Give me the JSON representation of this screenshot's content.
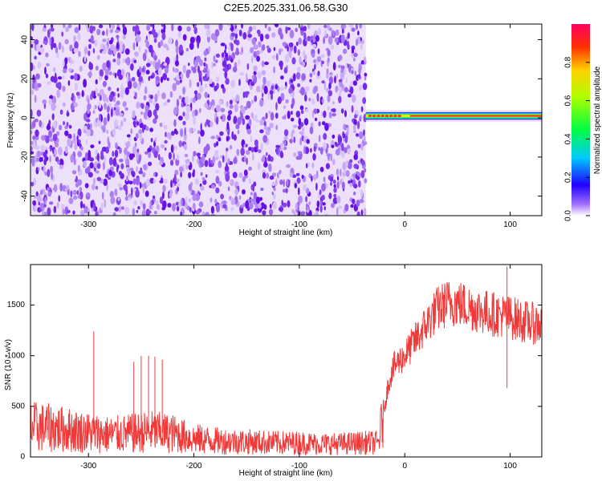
{
  "title": "C2E5.2025.331.06.58.G30",
  "colors": {
    "snr_line": "#f03a3a",
    "spectrum_low": "#7a2be8",
    "axis": "#000000"
  },
  "chart_data": [
    {
      "type": "heatmap",
      "xlabel": "Height of straight line (km)",
      "ylabel": "Frequency (Hz)",
      "xlim": [
        -355,
        130
      ],
      "ylim": [
        -50,
        48
      ],
      "x_ticks": [
        -300,
        -200,
        -100,
        0,
        100
      ],
      "y_ticks": [
        -40,
        -20,
        0,
        20,
        40
      ],
      "colorbar": {
        "label": "Normalized spectral amplitude",
        "range": [
          0.0,
          1.0
        ],
        "ticks": [
          "0.0",
          "0.2",
          "0.4",
          "0.6",
          "0.8"
        ],
        "colormap": "rainbow"
      },
      "regions": [
        {
          "x_range": [
            -355,
            -37
          ],
          "description_value": "broadband noise",
          "amplitude": 0.12
        },
        {
          "x_range": [
            -37,
            130
          ],
          "frequency_hz": 1,
          "amplitude": 0.95
        }
      ]
    },
    {
      "type": "line",
      "xlabel": "Height of straight line (km)",
      "ylabel": "SNR (10 * v/v)",
      "xlim": [
        -355,
        130
      ],
      "ylim": [
        0,
        1900
      ],
      "x_ticks": [
        -300,
        -200,
        -100,
        0,
        100
      ],
      "y_ticks": [
        0,
        500,
        1000,
        1500
      ],
      "series": [
        {
          "x": [
            -355,
            -330,
            -300,
            -280,
            -260,
            -240,
            -220,
            -200,
            -180,
            -150,
            -120,
            -100,
            -80,
            -60,
            -40,
            -25,
            -20,
            -15,
            -10,
            0,
            10,
            20,
            30,
            40,
            50,
            60,
            70,
            80,
            90,
            100,
            110,
            120,
            130
          ],
          "y": [
            300,
            280,
            240,
            220,
            230,
            250,
            230,
            180,
            160,
            150,
            140,
            140,
            130,
            130,
            140,
            140,
            450,
            750,
            900,
            1000,
            1150,
            1300,
            1450,
            1520,
            1520,
            1480,
            1450,
            1420,
            1400,
            1380,
            1350,
            1320,
            1310
          ]
        }
      ],
      "spikes": [
        {
          "x": -295,
          "y": 1240
        },
        {
          "x": -257,
          "y": 940
        },
        {
          "x": -250,
          "y": 1000
        },
        {
          "x": -243,
          "y": 1000
        },
        {
          "x": -237,
          "y": 990
        },
        {
          "x": -230,
          "y": 960
        },
        {
          "x": 97,
          "y": 1880
        },
        {
          "x": 97,
          "y": 680
        }
      ]
    }
  ]
}
